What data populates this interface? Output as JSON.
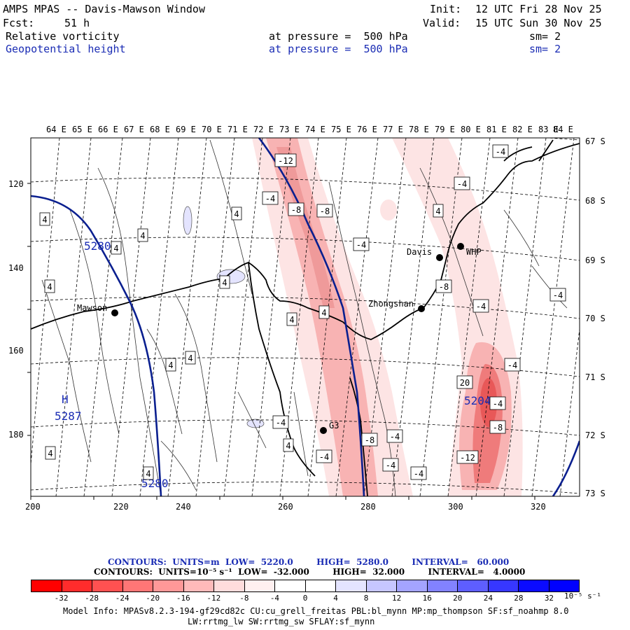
{
  "header": {
    "title": "AMPS MPAS -- Davis-Mawson Window",
    "fcst_label": "Fcst:",
    "fcst_value": "51 h",
    "init_label": "Init:",
    "init_value": "12 UTC Fri 28 Nov 25",
    "valid_label": "Valid:",
    "valid_value": "15 UTC Sun 30 Nov 25",
    "field1_name": "Relative vorticity",
    "field1_level": "at pressure =  500 hPa",
    "field1_sm": "sm= 2",
    "field2_name": "Geopotential height",
    "field2_level": "at pressure =  500 hPa",
    "field2_sm": "sm= 2"
  },
  "map": {
    "top_lon_labels": [
      "64 E",
      "65 E",
      "66 E",
      "67 E",
      "68 E",
      "69 E",
      "70 E",
      "71 E",
      "72 E",
      "73 E",
      "74 E",
      "75 E",
      "76 E",
      "77 E",
      "78 E",
      "79 E",
      "80 E",
      "81 E",
      "82 E",
      "83 E",
      "84 E"
    ],
    "right_lat_labels": [
      "67 S",
      "68 S",
      "69 S",
      "70 S",
      "71 S",
      "72 S",
      "73 S"
    ],
    "x_axis_ticks": [
      "200",
      "220",
      "240",
      "260",
      "280",
      "300",
      "320"
    ],
    "y_axis_ticks": [
      "120",
      "140",
      "160",
      "180"
    ],
    "stations": [
      {
        "name": "Mawson"
      },
      {
        "name": "Davis"
      },
      {
        "name": "WHP"
      },
      {
        "name": "Zhongshan"
      },
      {
        "name": "G3"
      }
    ],
    "height_labels": [
      "5280",
      "5287",
      "5280",
      "5204"
    ],
    "high_marker": "H",
    "contour_box_labels": [
      "-12",
      "-4",
      "-8",
      "-8",
      "-4",
      "-4",
      "4",
      "4",
      "4",
      "4",
      "4",
      "4",
      "4",
      "4",
      "4",
      "-8",
      "4",
      "4",
      "4",
      "-4",
      "-4",
      "-4",
      "-4",
      "-8",
      "-4",
      "-4",
      "-4",
      "-12",
      "-8",
      "-4",
      "20",
      "-4",
      "-4",
      "4",
      "4"
    ],
    "colors": {
      "height_contour": "#0a1f8f",
      "coast": "#000000",
      "shade_light": "#fde4e4",
      "shade_mid": "#f8b3b3",
      "shade_dark": "#ef7b7b"
    }
  },
  "legend": {
    "line1": "CONTOURS:  UNITS=m  LOW=  5220.0        HIGH=  5280.0        INTERVAL=   60.000",
    "line2": "CONTOURS:  UNITS=10⁻⁵ s⁻¹  LOW=  -32.000        HIGH=  32.000        INTERVAL=   4.0000",
    "colorbar_colors": [
      "#ff0000",
      "#ff2c2c",
      "#ff5151",
      "#ff7676",
      "#ff9898",
      "#ffbaba",
      "#ffdcdc",
      "#fff0f0",
      "#ffffff",
      "#ffffff",
      "#e4e4ff",
      "#c6c6ff",
      "#a4a4ff",
      "#8282ff",
      "#5e5eff",
      "#3737ff",
      "#0b0bff",
      "#0000ff"
    ],
    "colorbar_labels": [
      "-32",
      "-28",
      "-24",
      "-20",
      "-16",
      "-12",
      "-8",
      "-4",
      "0",
      "4",
      "8",
      "12",
      "16",
      "20",
      "24",
      "28",
      "32"
    ],
    "units": "10⁻⁵ s⁻¹"
  },
  "footer": {
    "line1": "Model Info: MPASv8.2.3-194-gf29cd82c CU:cu_grell_freitas PBL:bl_mynn MP:mp_thompson SF:sf_noahmp 8.0",
    "line2": "LW:rrtmg_lw SW:rrtmg_sw SFLAY:sf_mynn"
  }
}
